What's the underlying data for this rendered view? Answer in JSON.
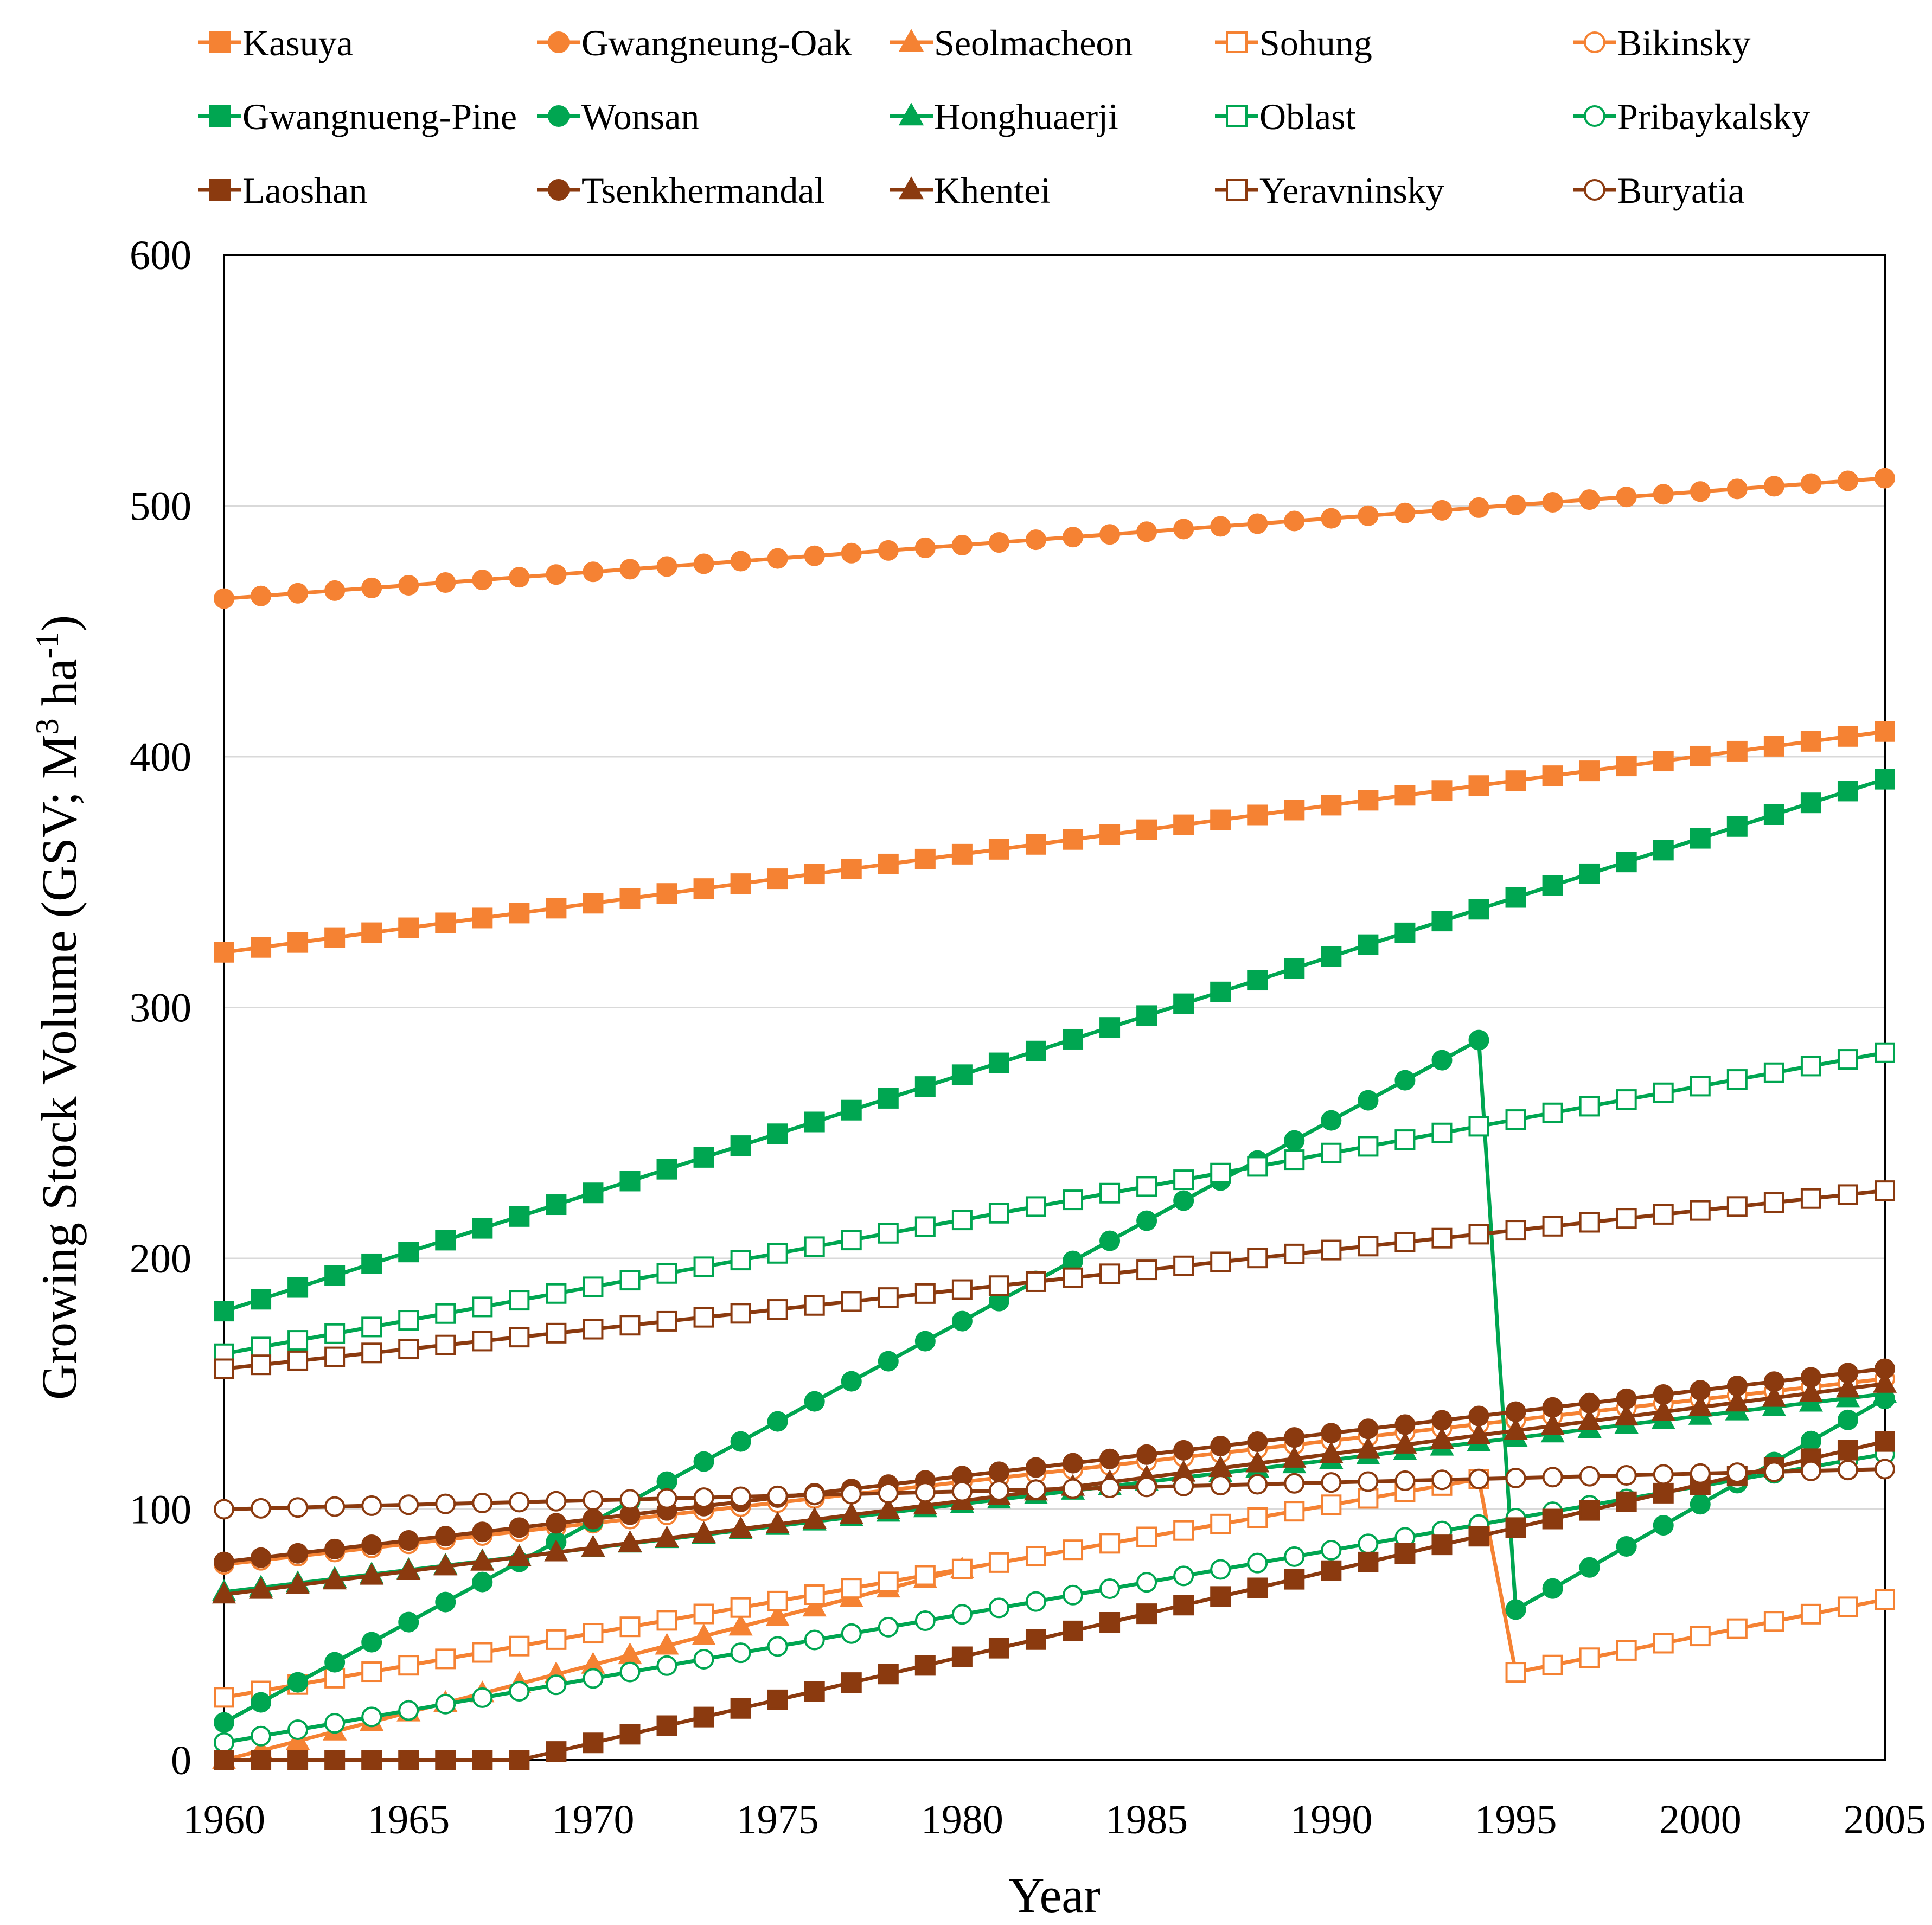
{
  "chart_data": {
    "type": "line",
    "title": "",
    "xlabel": "Year",
    "ylabel": "Growing Stock Volume (GSV; M³ ha⁻¹)",
    "ylabel_parts": {
      "pre": "Growing Stock Volume (GSV; M",
      "sup1": "3",
      "mid": " ha",
      "sup2": "-1",
      "post": ")"
    },
    "xlim": [
      1960,
      2005
    ],
    "ylim": [
      0,
      600
    ],
    "x_ticks": [
      1960,
      1965,
      1970,
      1975,
      1980,
      1985,
      1990,
      1995,
      2000,
      2005
    ],
    "y_ticks": [
      0,
      100,
      200,
      300,
      400,
      500,
      600
    ],
    "grid": "horizontal",
    "legend_position": "top",
    "series": [
      {
        "name": "Kasuya",
        "color": "#F58233",
        "marker": "square",
        "filled": true,
        "segments": [
          {
            "x0": 1960,
            "x1": 2005,
            "y0": 322,
            "y1": 410
          }
        ]
      },
      {
        "name": "Gwangneung-Oak",
        "color": "#F58233",
        "marker": "circle",
        "filled": true,
        "segments": [
          {
            "x0": 1960,
            "x1": 2005,
            "y0": 463,
            "y1": 511
          }
        ]
      },
      {
        "name": "Seolmacheon",
        "color": "#F58233",
        "marker": "triangle",
        "filled": true,
        "segments": [
          {
            "x0": 1960,
            "x1": 1980,
            "y0": 0,
            "y1": 76
          }
        ]
      },
      {
        "name": "Sohung",
        "color": "#F58233",
        "marker": "square",
        "filled": false,
        "segments": [
          {
            "x0": 1960,
            "x1": 1994,
            "y0": 25,
            "y1": 112
          },
          {
            "x0": 1995,
            "x1": 2005,
            "y0": 35,
            "y1": 64
          }
        ]
      },
      {
        "name": "Bikinsky",
        "color": "#F58233",
        "marker": "circle",
        "filled": false,
        "segments": [
          {
            "x0": 1960,
            "x1": 2005,
            "y0": 78,
            "y1": 152
          }
        ]
      },
      {
        "name": "Gwangnueng-Pine",
        "color": "#00A651",
        "marker": "square",
        "filled": true,
        "segments": [
          {
            "x0": 1960,
            "x1": 2005,
            "y0": 179,
            "y1": 391
          }
        ]
      },
      {
        "name": "Wonsan",
        "color": "#00A651",
        "marker": "circle",
        "filled": true,
        "segments": [
          {
            "x0": 1960,
            "x1": 1994,
            "y0": 15,
            "y1": 287
          },
          {
            "x0": 1995,
            "x1": 2005,
            "y0": 60,
            "y1": 144
          }
        ]
      },
      {
        "name": "Honghuaerji",
        "color": "#00A651",
        "marker": "triangle",
        "filled": true,
        "segments": [
          {
            "x0": 1960,
            "x1": 2005,
            "y0": 67,
            "y1": 146
          }
        ]
      },
      {
        "name": "Oblast",
        "color": "#00A651",
        "marker": "square",
        "filled": false,
        "segments": [
          {
            "x0": 1960,
            "x1": 2005,
            "y0": 162,
            "y1": 282
          }
        ]
      },
      {
        "name": "Pribaykalsky",
        "color": "#00A651",
        "marker": "circle",
        "filled": false,
        "segments": [
          {
            "x0": 1960,
            "x1": 2005,
            "y0": 7,
            "y1": 122
          }
        ]
      },
      {
        "name": "Laoshan",
        "color": "#8B3A0F",
        "marker": "square",
        "filled": true,
        "segments": [
          {
            "x0": 1960,
            "x1": 1968,
            "y0": 0,
            "y1": 0
          },
          {
            "x0": 1968,
            "x1": 2005,
            "y0": 0,
            "y1": 127
          }
        ]
      },
      {
        "name": "Tsenkhermandal",
        "color": "#8B3A0F",
        "marker": "circle",
        "filled": true,
        "segments": [
          {
            "x0": 1960,
            "x1": 2005,
            "y0": 79,
            "y1": 156
          }
        ]
      },
      {
        "name": "Khentei",
        "color": "#8B3A0F",
        "marker": "triangle",
        "filled": true,
        "segments": [
          {
            "x0": 1960,
            "x1": 2005,
            "y0": 66,
            "y1": 150
          }
        ]
      },
      {
        "name": "Yeravninsky",
        "color": "#8B3A0F",
        "marker": "square",
        "filled": false,
        "segments": [
          {
            "x0": 1960,
            "x1": 2005,
            "y0": 156,
            "y1": 227
          }
        ]
      },
      {
        "name": "Buryatia",
        "color": "#8B3A0F",
        "marker": "circle",
        "filled": false,
        "segments": [
          {
            "x0": 1960,
            "x1": 2005,
            "y0": 100,
            "y1": 116
          }
        ]
      }
    ]
  }
}
